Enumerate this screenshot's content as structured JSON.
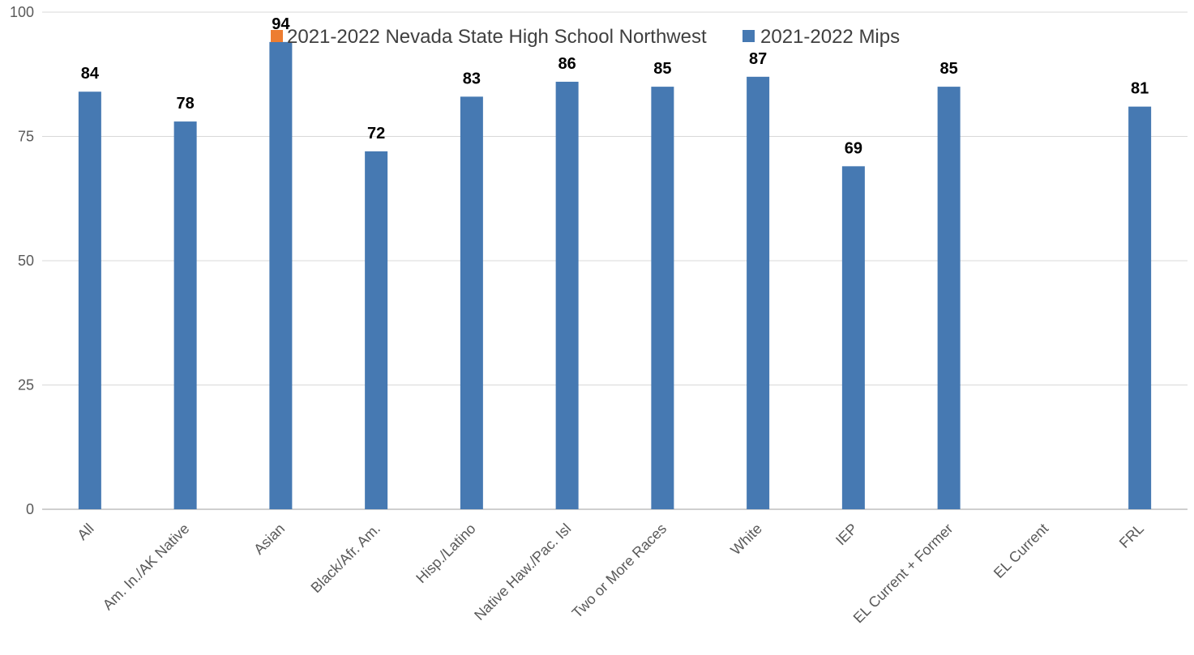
{
  "chart_data": {
    "type": "bar",
    "title": "",
    "xlabel": "",
    "ylabel": "",
    "ylim": [
      0,
      100
    ],
    "yticks": [
      0,
      25,
      50,
      75,
      100
    ],
    "grid": true,
    "legend_position": "top-center",
    "categories": [
      "All",
      "Am. In./AK Native",
      "Asian",
      "Black/Afr. Am.",
      "Hisp./Latino",
      "Native Haw./Pac. Isl",
      "Two or More Races",
      "White",
      "IEP",
      "EL Current + Former",
      "EL Current",
      "FRL"
    ],
    "series": [
      {
        "name": "2021-2022 Nevada State High School Northwest",
        "color": "#ED7D31",
        "values": [
          null,
          null,
          null,
          null,
          null,
          null,
          null,
          null,
          null,
          null,
          null,
          null
        ]
      },
      {
        "name": "2021-2022 Mips",
        "color": "#4679B2",
        "values": [
          84,
          78,
          94,
          72,
          83,
          86,
          85,
          87,
          69,
          85,
          null,
          81
        ],
        "labels": [
          "84",
          "78",
          "94",
          "72",
          "83",
          "86",
          "85",
          "87",
          "69",
          "85",
          "",
          "81"
        ]
      }
    ]
  }
}
